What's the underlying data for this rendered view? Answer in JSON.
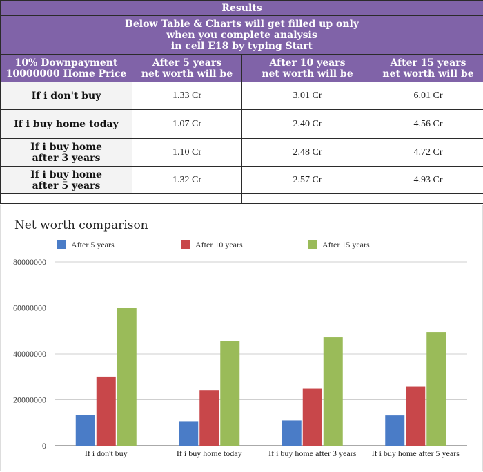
{
  "results": {
    "title": "Results",
    "subtitle_lines": [
      "Below Table & Charts will get filled up only",
      "when you complete analysis",
      "in cell E18 by typing Start"
    ],
    "corner_lines": [
      "10% Downpayment",
      "10000000 Home Price"
    ],
    "col_headers": [
      [
        "After 5 years",
        "net worth will be"
      ],
      [
        "After 10 years",
        "net worth will be"
      ],
      [
        "After 15 years",
        "net worth will be"
      ]
    ],
    "rows": [
      {
        "label_lines": [
          "If i don't buy"
        ],
        "values": [
          "1.33 Cr",
          "3.01 Cr",
          "6.01 Cr"
        ]
      },
      {
        "label_lines": [
          "If i buy home today"
        ],
        "values": [
          "1.07 Cr",
          "2.40 Cr",
          "4.56 Cr"
        ]
      },
      {
        "label_lines": [
          "If i buy home",
          "after 3 years"
        ],
        "values": [
          "1.10 Cr",
          "2.48 Cr",
          "4.72 Cr"
        ]
      },
      {
        "label_lines": [
          "If i buy home",
          "after 5 years"
        ],
        "values": [
          "1.32 Cr",
          "2.57 Cr",
          "4.93 Cr"
        ]
      }
    ]
  },
  "chart_data": {
    "type": "bar",
    "title": "Net worth comparison",
    "categories": [
      "If i don't buy",
      "If i buy home today",
      "If i buy home after 3 years",
      "If i buy home after 5 years"
    ],
    "series": [
      {
        "name": "After 5 years",
        "color": "#4a7cc7",
        "values": [
          13300000,
          10700000,
          11000000,
          13200000
        ]
      },
      {
        "name": "After 10 years",
        "color": "#c8474a",
        "values": [
          30100000,
          24000000,
          24800000,
          25700000
        ]
      },
      {
        "name": "After 15 years",
        "color": "#9abb59",
        "values": [
          60100000,
          45600000,
          47200000,
          49300000
        ]
      }
    ],
    "ylim": [
      0,
      80000000
    ],
    "yticks": [
      0,
      20000000,
      40000000,
      60000000,
      80000000
    ],
    "ytick_labels": [
      "0",
      "20000000",
      "40000000",
      "60000000",
      "80000000"
    ],
    "grid": true,
    "legend": "top",
    "xlabel": "",
    "ylabel": ""
  }
}
